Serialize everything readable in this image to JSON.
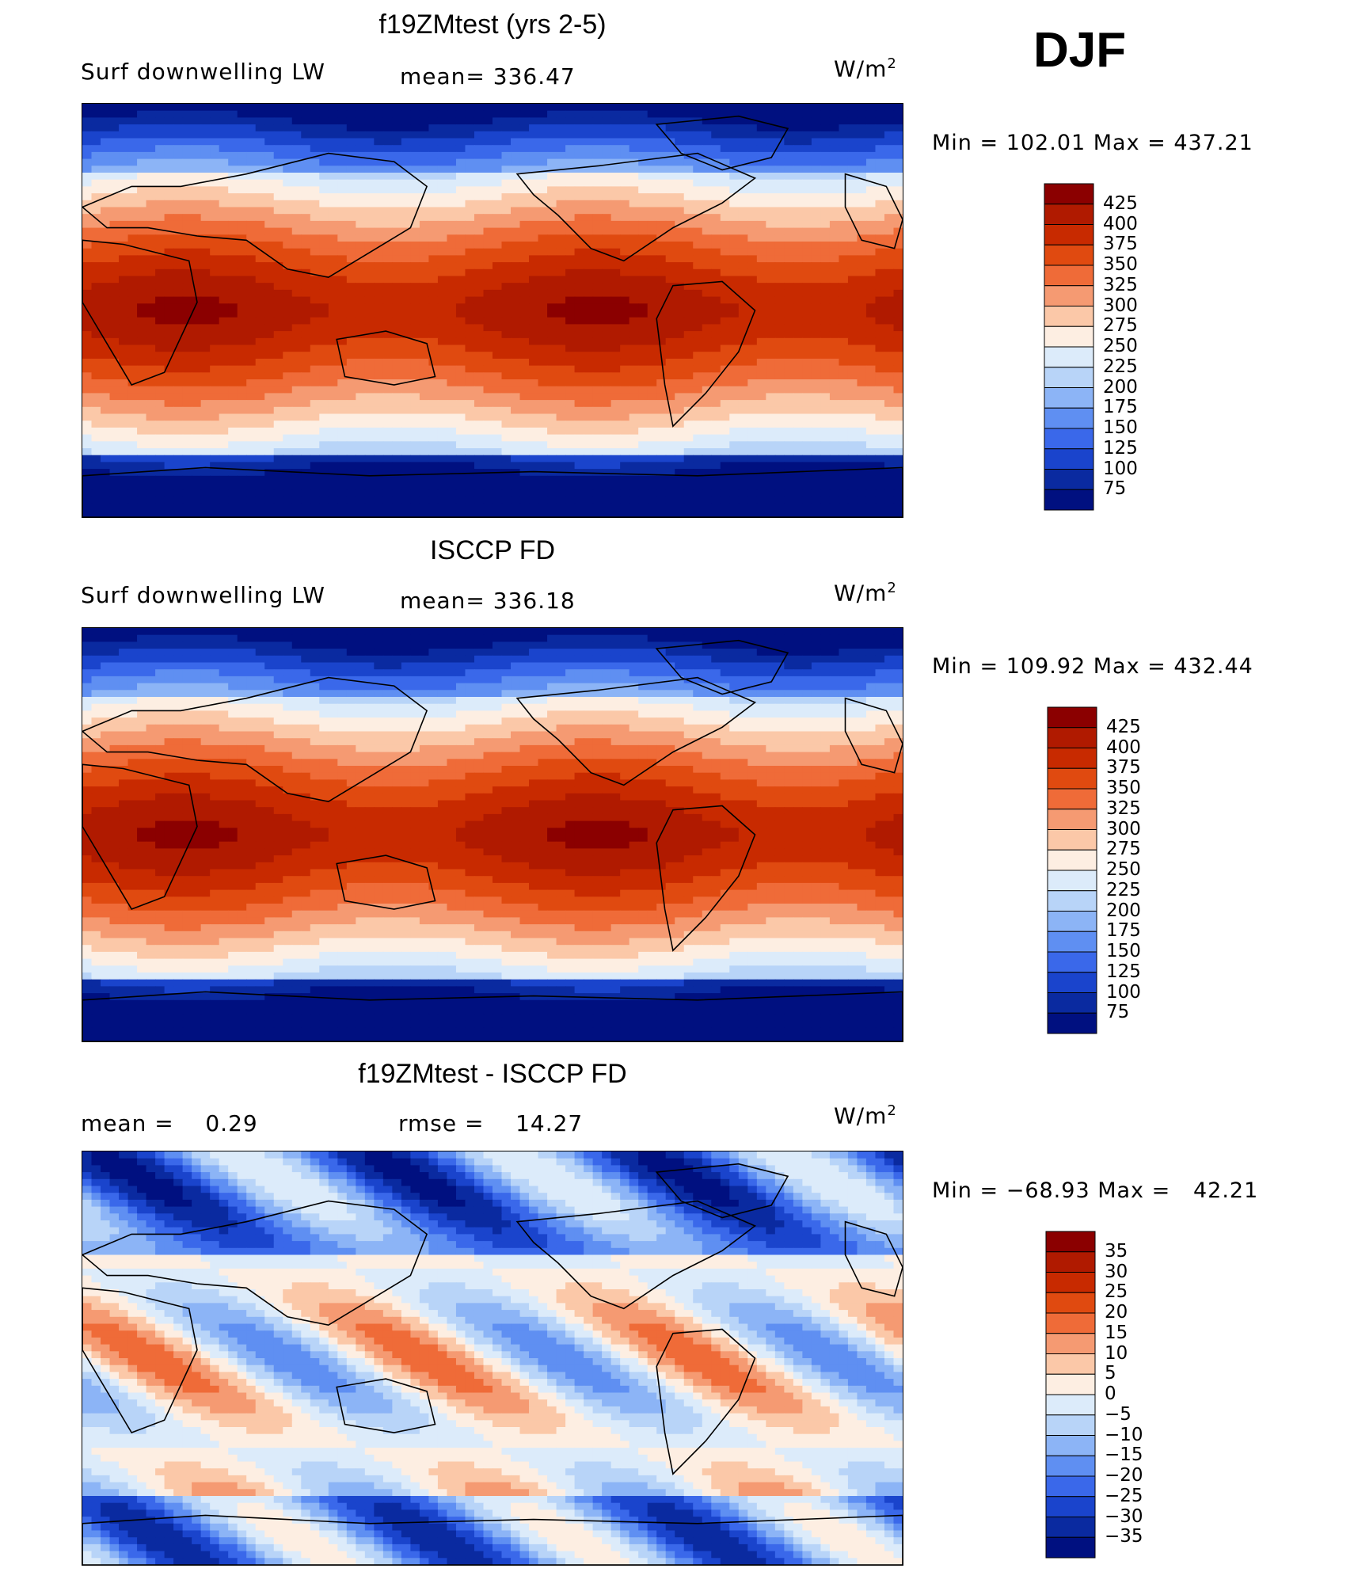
{
  "season": "DJF",
  "panels": [
    {
      "title": "f19ZMtest (yrs 2-5)",
      "left_label": "Surf downwelling LW",
      "center_label": "mean= 336.47",
      "unit_base": "W/m",
      "unit_sup": "2",
      "minmax": "Min = 102.01 Max = 437.21"
    },
    {
      "title": "ISCCP FD",
      "left_label": "Surf downwelling LW",
      "center_label": "mean= 336.18",
      "unit_base": "W/m",
      "unit_sup": "2",
      "minmax": "Min = 109.92 Max = 432.44"
    },
    {
      "title": "f19ZMtest - ISCCP FD",
      "left_label": "mean =    0.29",
      "center_label": "rmse =    14.27",
      "unit_base": "W/m",
      "unit_sup": "2",
      "minmax": "Min = −68.93 Max =   42.21"
    }
  ],
  "chart_data": [
    {
      "type": "heatmap",
      "title": "f19ZMtest (yrs 2-5)",
      "variable": "Surf downwelling LW",
      "mean": 336.47,
      "min": 102.01,
      "max": 437.21,
      "units": "W/m2",
      "colorbar_ticks": [
        "425",
        "400",
        "375",
        "350",
        "325",
        "300",
        "275",
        "250",
        "225",
        "200",
        "175",
        "150",
        "125",
        "100",
        "75"
      ],
      "colors": [
        "#8b0000",
        "#b01a00",
        "#c82a00",
        "#e04a10",
        "#ef6b38",
        "#f59a72",
        "#fbc8a8",
        "#fdeee2",
        "#dcebfa",
        "#b8d4f8",
        "#8cb4f6",
        "#5f8ff2",
        "#3a68ea",
        "#1a44cc",
        "#0a2aa0",
        "#001080"
      ]
    },
    {
      "type": "heatmap",
      "title": "ISCCP FD",
      "variable": "Surf downwelling LW",
      "mean": 336.18,
      "min": 109.92,
      "max": 432.44,
      "units": "W/m2",
      "colorbar_ticks": [
        "425",
        "400",
        "375",
        "350",
        "325",
        "300",
        "275",
        "250",
        "225",
        "200",
        "175",
        "150",
        "125",
        "100",
        "75"
      ],
      "colors": [
        "#8b0000",
        "#b01a00",
        "#c82a00",
        "#e04a10",
        "#ef6b38",
        "#f59a72",
        "#fbc8a8",
        "#fdeee2",
        "#dcebfa",
        "#b8d4f8",
        "#8cb4f6",
        "#5f8ff2",
        "#3a68ea",
        "#1a44cc",
        "#0a2aa0",
        "#001080"
      ]
    },
    {
      "type": "heatmap",
      "title": "f19ZMtest - ISCCP FD",
      "mean": 0.29,
      "rmse": 14.27,
      "min": -68.93,
      "max": 42.21,
      "units": "W/m2",
      "colorbar_ticks": [
        "35",
        "30",
        "25",
        "20",
        "15",
        "10",
        "5",
        "0",
        "−5",
        "−10",
        "−15",
        "−20",
        "−25",
        "−30",
        "−35"
      ],
      "colors": [
        "#8b0000",
        "#b01a00",
        "#c82a00",
        "#e04a10",
        "#ef6b38",
        "#f59a72",
        "#fbc8a8",
        "#fdeee2",
        "#dcebfa",
        "#b8d4f8",
        "#8cb4f6",
        "#5f8ff2",
        "#3a68ea",
        "#1a44cc",
        "#0a2aa0",
        "#001080"
      ]
    }
  ]
}
